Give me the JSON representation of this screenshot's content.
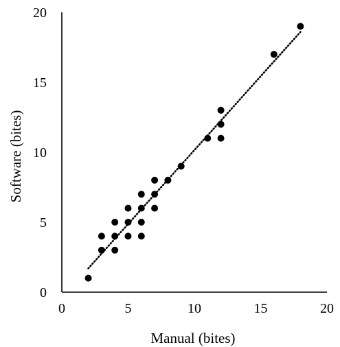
{
  "chart_data": {
    "type": "scatter",
    "title": "",
    "xlabel": "Manual (bites)",
    "ylabel": "Software (bites)",
    "xlim": [
      0,
      20
    ],
    "ylim": [
      0,
      20
    ],
    "x_ticks": [
      0,
      5,
      10,
      15,
      20
    ],
    "y_ticks": [
      0,
      5,
      10,
      15,
      20
    ],
    "x_tick_labels": [
      "0",
      "5",
      "10",
      "15",
      "20"
    ],
    "y_tick_labels": [
      "0",
      "5",
      "10",
      "15",
      "20"
    ],
    "grid": false,
    "legend": "none",
    "marker_color": "#000000",
    "trendline": {
      "type": "linear",
      "style": "dotted",
      "x_range": [
        2,
        18
      ],
      "y_start": 1.7,
      "y_end": 18.6
    },
    "points": [
      {
        "x": 2,
        "y": 1
      },
      {
        "x": 3,
        "y": 3
      },
      {
        "x": 3,
        "y": 4
      },
      {
        "x": 4,
        "y": 3
      },
      {
        "x": 4,
        "y": 4
      },
      {
        "x": 4,
        "y": 5
      },
      {
        "x": 5,
        "y": 4
      },
      {
        "x": 5,
        "y": 5
      },
      {
        "x": 5,
        "y": 6
      },
      {
        "x": 6,
        "y": 4
      },
      {
        "x": 6,
        "y": 5
      },
      {
        "x": 6,
        "y": 6
      },
      {
        "x": 6,
        "y": 7
      },
      {
        "x": 7,
        "y": 6
      },
      {
        "x": 7,
        "y": 7
      },
      {
        "x": 7,
        "y": 8
      },
      {
        "x": 8,
        "y": 8
      },
      {
        "x": 9,
        "y": 9
      },
      {
        "x": 11,
        "y": 11
      },
      {
        "x": 12,
        "y": 11
      },
      {
        "x": 12,
        "y": 12
      },
      {
        "x": 12,
        "y": 13
      },
      {
        "x": 16,
        "y": 17
      },
      {
        "x": 18,
        "y": 19
      }
    ]
  }
}
